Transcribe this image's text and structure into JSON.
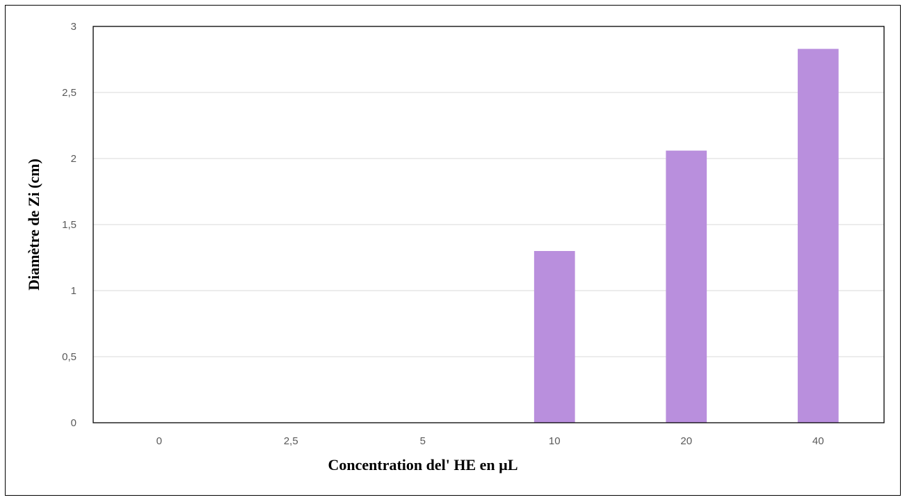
{
  "chart_data": {
    "type": "bar",
    "title": "",
    "xlabel": "Concentration del' HE en µL",
    "ylabel": "Diamètre de Zi (cm)",
    "categories": [
      "0",
      "2,5",
      "5",
      "10",
      "20",
      "40"
    ],
    "values": [
      0,
      0,
      0,
      1.3,
      2.06,
      2.83
    ],
    "ylim": [
      0,
      3
    ],
    "yticks": [
      {
        "value": 0,
        "label": "0"
      },
      {
        "value": 0.5,
        "label": "0,5"
      },
      {
        "value": 1,
        "label": "1"
      },
      {
        "value": 1.5,
        "label": "1,5"
      },
      {
        "value": 2,
        "label": "2"
      },
      {
        "value": 2.5,
        "label": "2,5"
      },
      {
        "value": 3,
        "label": "3"
      }
    ],
    "grid": true,
    "legend": "none",
    "colors": {
      "bar": "#B98FDD",
      "grid": "#D9D9D9",
      "axis": "#BFBFBF",
      "plot_border": "#000000",
      "tick_label": "#595959"
    }
  }
}
